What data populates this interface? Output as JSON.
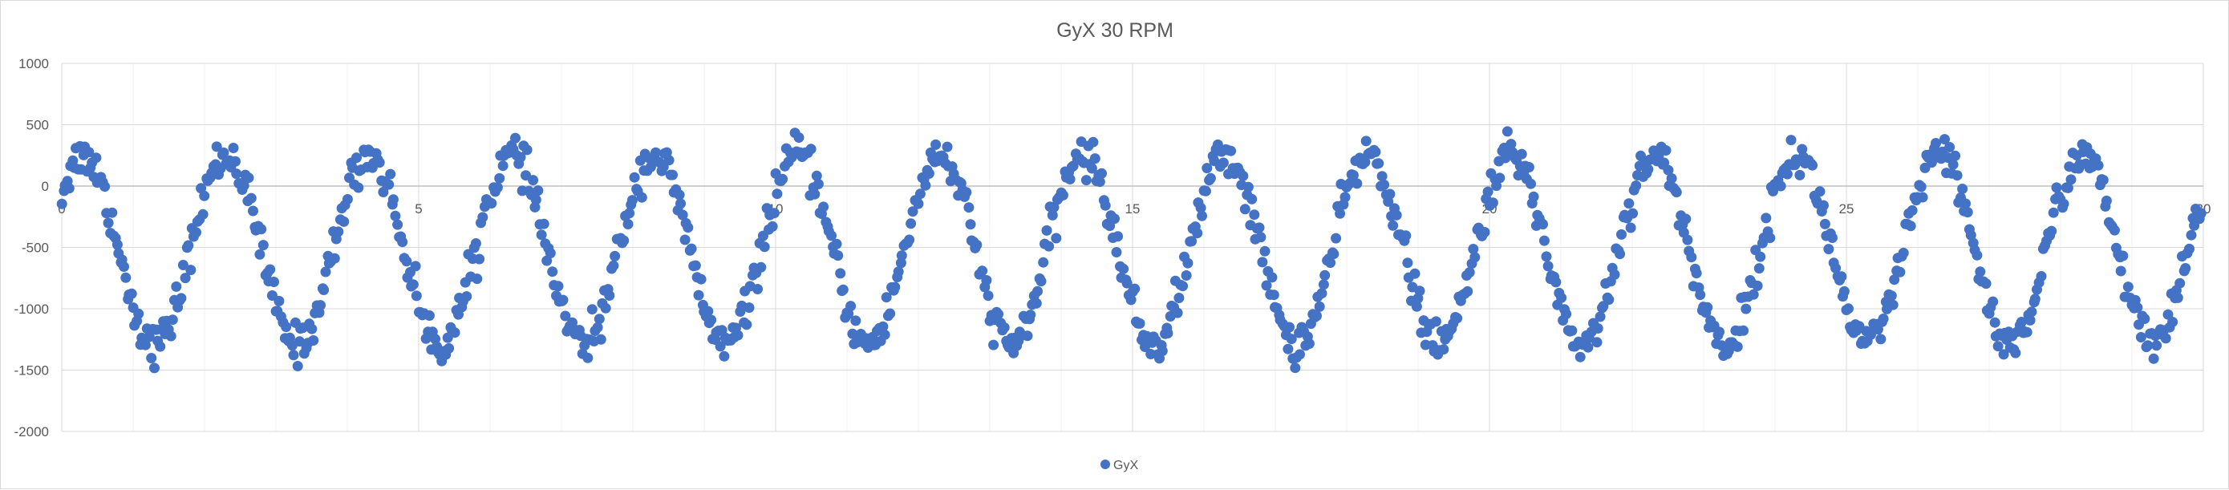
{
  "chart_data": {
    "type": "scatter",
    "title": "GyX 30 RPM",
    "xlabel": "",
    "ylabel": "",
    "xlim": [
      0,
      30
    ],
    "ylim": [
      -2000,
      1000
    ],
    "x_ticks": [
      "0",
      "5",
      "10",
      "15",
      "20",
      "25",
      "30"
    ],
    "y_ticks": [
      "1000",
      "500",
      "0",
      "-500",
      "-1000",
      "-1500",
      "-2000"
    ],
    "x_minor_step": 1,
    "grid": true,
    "legend": "bottom-center",
    "series": [
      {
        "name": "GyX",
        "color": "#4472c4",
        "waveform": {
          "cycles": 15,
          "period": 2,
          "center": -520,
          "amplitude": 770,
          "peak_x": 0.3,
          "noise": 80,
          "sample_step": 0.025
        }
      }
    ]
  }
}
